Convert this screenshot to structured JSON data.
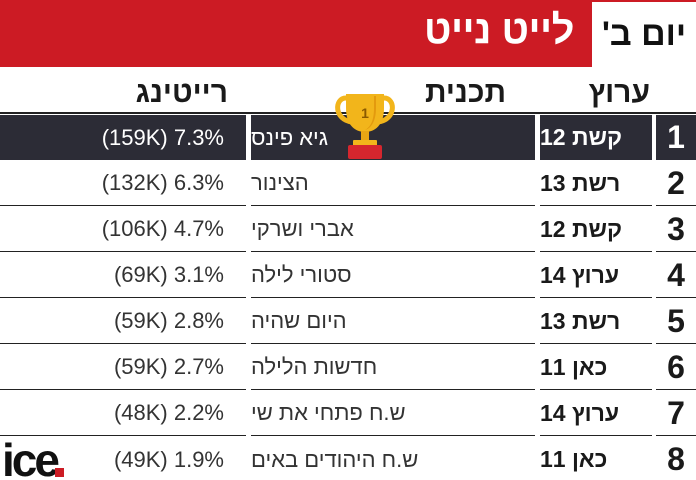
{
  "header": {
    "title": "לייט נייט",
    "day": "יום ב'"
  },
  "columns": {
    "network": "ערוץ",
    "program": "תכנית",
    "rating": "רייטינג"
  },
  "rows": [
    {
      "rank": "1",
      "network": "קשת 12",
      "program": "גיא פינס",
      "rating": "(159K) 7.3%"
    },
    {
      "rank": "2",
      "network": "רשת 13",
      "program": "הצינור",
      "rating": "(132K) 6.3%"
    },
    {
      "rank": "3",
      "network": "קשת 12",
      "program": "אברי ושרקי",
      "rating": "(106K) 4.7%"
    },
    {
      "rank": "4",
      "network": "ערוץ 14",
      "program": "סטורי לילה",
      "rating": "(69K) 3.1%"
    },
    {
      "rank": "5",
      "network": "רשת 13",
      "program": "היום שהיה",
      "rating": "(59K) 2.8%"
    },
    {
      "rank": "6",
      "network": "כאן 11",
      "program": "חדשות הלילה",
      "rating": "(59K) 2.7%"
    },
    {
      "rank": "7",
      "network": "ערוץ 14",
      "program": "ש.ח פתחי את שי",
      "rating": "(48K) 2.2%"
    },
    {
      "rank": "8",
      "network": "כאן 11",
      "program": "ש.ח היהודים באים",
      "rating": "(49K) 1.9%"
    }
  ],
  "trophy": {
    "icon": "trophy-icon",
    "number": "1",
    "color": "#f2b51b",
    "base_color": "#d6262e"
  },
  "logo": {
    "text": "ice",
    "dot_color": "#cc1b24"
  },
  "colors": {
    "accent": "#cc1b24",
    "highlight_row": "#2c2c36"
  }
}
